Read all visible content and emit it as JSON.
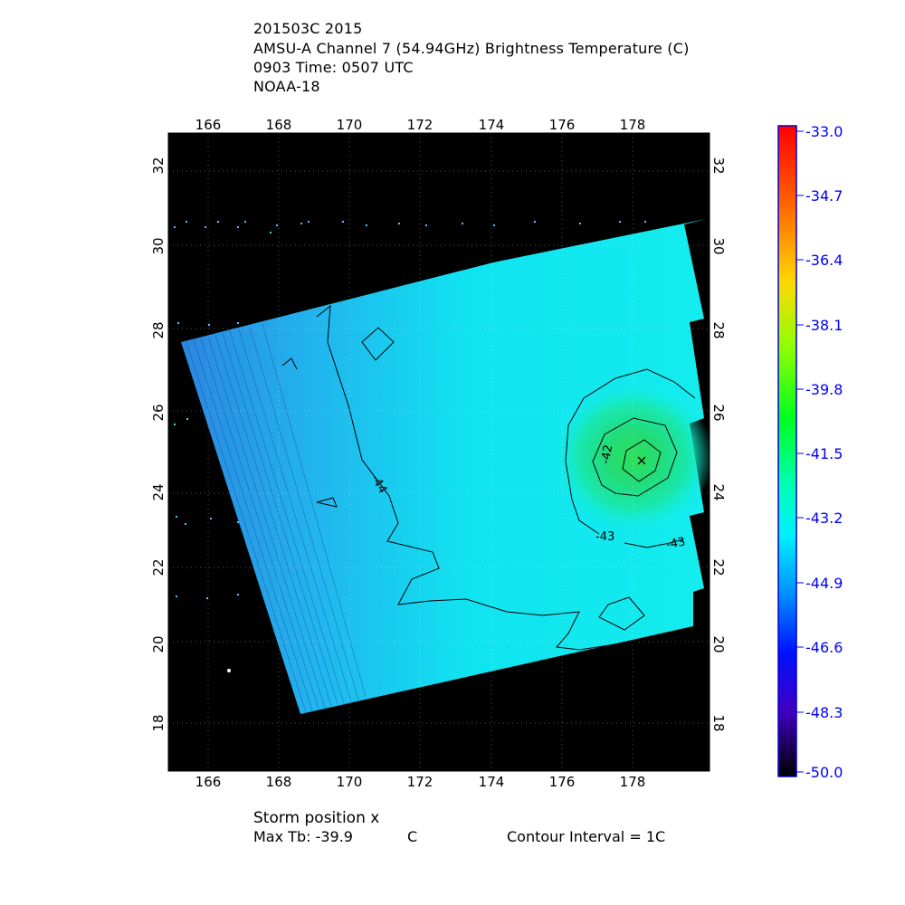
{
  "header": {
    "line1": "201503C 2015",
    "line2": "AMSU-A Channel 7 (54.94GHz) Brightness Temperature (C)",
    "line3": "0903 Time: 0507 UTC",
    "line4": "NOAA-18"
  },
  "map": {
    "lon_ticks": [
      "166",
      "168",
      "170",
      "172",
      "174",
      "176",
      "178"
    ],
    "lat_ticks": [
      "32",
      "30",
      "28",
      "26",
      "24",
      "22",
      "20",
      "18"
    ],
    "lon_range": [
      165,
      180
    ],
    "lat_range": [
      17,
      33
    ],
    "background_color": "#000000",
    "swath_color": "#22c8e8",
    "contour_labels": [
      "-42",
      "-44",
      "-43",
      "-43"
    ],
    "storm_marker": "x",
    "storm_position": {
      "lon": 178.3,
      "lat": 24.8
    }
  },
  "colorbar": {
    "labels": [
      "-33.0",
      "-34.7",
      "-36.4",
      "-38.1",
      "-39.8",
      "-41.5",
      "-43.2",
      "-44.9",
      "-46.6",
      "-48.3",
      "-50.0"
    ],
    "min": -50.0,
    "max": -33.0,
    "label_color": "#0000ff"
  },
  "footer": {
    "storm": "Storm position x",
    "max_tb_label": "Max Tb: -39.9",
    "max_tb_unit": "C",
    "contour": "Contour Interval = 1C"
  }
}
